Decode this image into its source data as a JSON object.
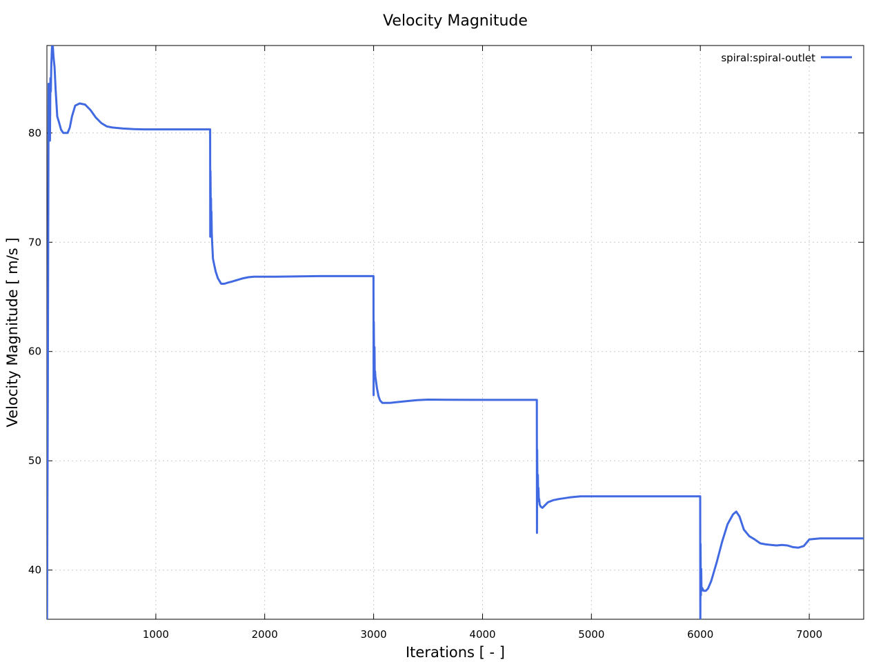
{
  "chart_data": {
    "type": "line",
    "title": "Velocity Magnitude",
    "xlabel": "Iterations [ - ]",
    "ylabel": "Velocity Magnitude [ m/s ]",
    "xlim": [
      0,
      7500
    ],
    "ylim": [
      35.5,
      88
    ],
    "xticks": [
      1000,
      2000,
      3000,
      4000,
      5000,
      6000,
      7000
    ],
    "yticks": [
      40,
      50,
      60,
      70,
      80
    ],
    "grid": true,
    "legend_position": "top-right",
    "series": [
      {
        "name": "spiral:spiral-outlet",
        "color": "#4169e1",
        "x": [
          1,
          8,
          12,
          16,
          20,
          24,
          28,
          32,
          36,
          40,
          45,
          50,
          55,
          60,
          70,
          80,
          95,
          110,
          130,
          150,
          170,
          190,
          210,
          230,
          260,
          300,
          350,
          400,
          450,
          500,
          550,
          600,
          650,
          700,
          800,
          900,
          1000,
          1200,
          1400,
          1499,
          1500,
          1502,
          1505,
          1507,
          1509,
          1511,
          1514,
          1517,
          1520,
          1525,
          1535,
          1550,
          1570,
          1600,
          1630,
          1660,
          1700,
          1750,
          1800,
          1850,
          1900,
          1950,
          2000,
          2100,
          2500,
          2999,
          3000,
          3002,
          3005,
          3008,
          3010,
          3013,
          3016,
          3020,
          3030,
          3045,
          3060,
          3080,
          3100,
          3150,
          3200,
          3300,
          3400,
          3500,
          3700,
          4000,
          4499,
          4500,
          4502,
          4505,
          4508,
          4511,
          4514,
          4517,
          4520,
          4525,
          4535,
          4550,
          4570,
          4600,
          4650,
          4700,
          4800,
          4900,
          5000,
          5500,
          5999,
          6000,
          6002,
          6005,
          6008,
          6011,
          6014,
          6020,
          6030,
          6050,
          6070,
          6100,
          6150,
          6200,
          6250,
          6300,
          6330,
          6360,
          6400,
          6450,
          6500,
          6550,
          6600,
          6650,
          6700,
          6750,
          6800,
          6850,
          6900,
          6950,
          7000,
          7100,
          7300,
          7500
        ],
        "y": [
          35.5,
          56,
          71,
          84.5,
          79.3,
          83.7,
          79.3,
          85,
          83.8,
          86,
          87.5,
          88.5,
          87.8,
          87,
          86,
          84,
          81.5,
          81,
          80.3,
          80,
          80,
          80,
          80.5,
          81.5,
          82.5,
          82.7,
          82.6,
          82.1,
          81.4,
          80.9,
          80.6,
          80.5,
          80.45,
          80.4,
          80.35,
          80.33,
          80.33,
          80.33,
          80.33,
          80.33,
          70.5,
          76.5,
          72.5,
          74,
          71.5,
          72.8,
          70.8,
          70,
          69.4,
          68.5,
          68,
          67.3,
          66.7,
          66.2,
          66.2,
          66.3,
          66.4,
          66.55,
          66.7,
          66.8,
          66.85,
          66.85,
          66.85,
          66.85,
          66.9,
          66.9,
          56,
          62.7,
          58.3,
          60.4,
          58,
          58.2,
          57.7,
          57.4,
          56.7,
          55.9,
          55.5,
          55.3,
          55.3,
          55.3,
          55.35,
          55.45,
          55.55,
          55.6,
          55.58,
          55.57,
          55.57,
          43.4,
          51,
          46.5,
          48.7,
          46.4,
          47.5,
          46.3,
          46.5,
          46,
          45.8,
          45.7,
          45.9,
          46.2,
          46.4,
          46.5,
          46.65,
          46.75,
          46.75,
          46.75,
          46.75,
          35.5,
          42.4,
          37.7,
          40.1,
          38.1,
          38.4,
          38.3,
          38.1,
          38.1,
          38.3,
          39,
          40.7,
          42.6,
          44.2,
          45.1,
          45.35,
          44.9,
          43.7,
          43.1,
          42.8,
          42.45,
          42.35,
          42.3,
          42.25,
          42.3,
          42.25,
          42.1,
          42.05,
          42.2,
          42.8,
          42.9,
          42.9,
          42.9
        ]
      }
    ]
  }
}
